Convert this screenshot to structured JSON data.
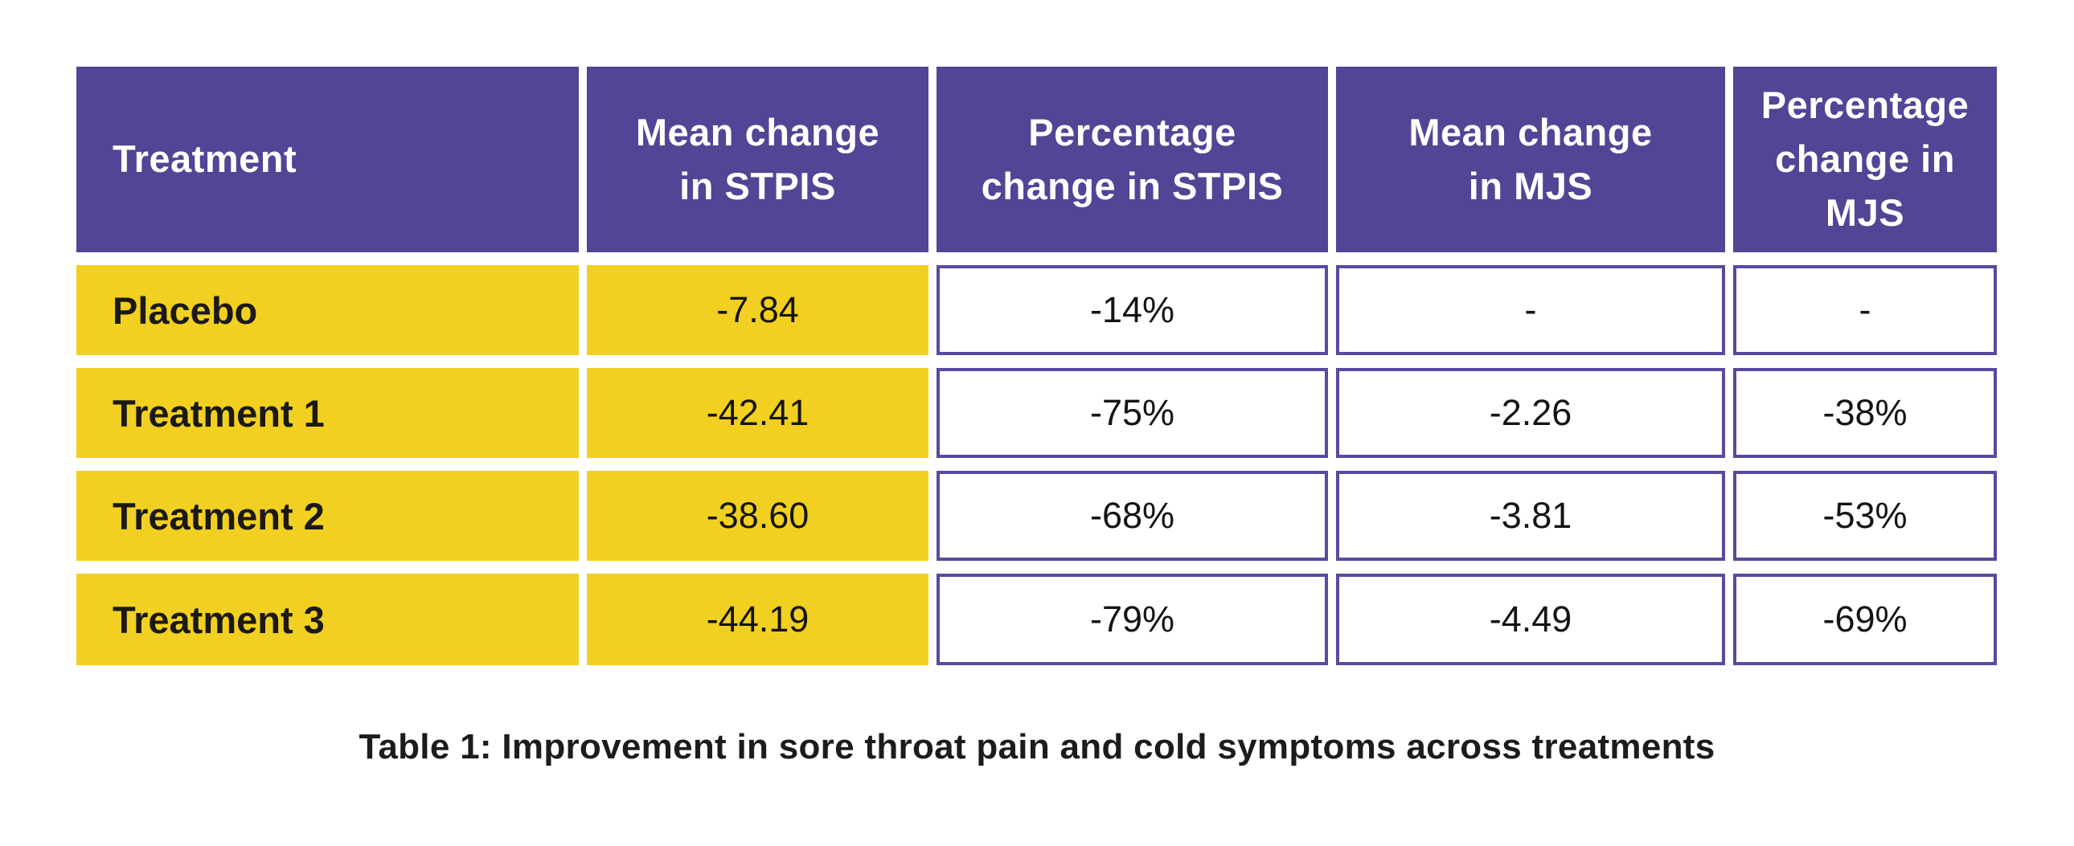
{
  "chart_data": {
    "type": "table",
    "title": "Table 1: Improvement in sore throat pain and cold symptoms across treatments",
    "columns": [
      "Treatment",
      "Mean change in STPIS",
      "Percentage change in STPIS",
      "Mean change in MJS",
      "Percentage change in MJS"
    ],
    "rows": [
      [
        "Placebo",
        "-7.84",
        "-14%",
        "-",
        "-"
      ],
      [
        "Treatment 1",
        "-42.41",
        "-75%",
        "-2.26",
        "-38%"
      ],
      [
        "Treatment 2",
        "-38.60",
        "-68%",
        "-3.81",
        "-53%"
      ],
      [
        "Treatment 3",
        "-44.19",
        "-79%",
        "-4.49",
        "-69%"
      ]
    ]
  },
  "table": {
    "header": [
      {
        "label": "Treatment"
      },
      {
        "label": "Mean change\nin STPIS"
      },
      {
        "label": "Percentage\nchange in STPIS"
      },
      {
        "label": "Mean change\nin MJS"
      },
      {
        "label": "Percentage\nchange in\nMJS"
      }
    ],
    "rows": [
      {
        "cells": [
          "Placebo",
          "-7.84",
          "-14%",
          "-",
          "-"
        ]
      },
      {
        "cells": [
          "Treatment 1",
          "-42.41",
          "-75%",
          "-2.26",
          "-38%"
        ]
      },
      {
        "cells": [
          "Treatment 2",
          "-38.60",
          "-68%",
          "-3.81",
          "-53%"
        ]
      },
      {
        "cells": [
          "Treatment 3",
          "-44.19",
          "-79%",
          "-4.49",
          "-69%"
        ]
      }
    ]
  },
  "caption": "Table 1: Improvement in sore throat pain and cold symptoms across treatments",
  "colors": {
    "header_bg": "#514596",
    "row_highlight_bg": "#F1D021",
    "value_cell_border": "#584A9D",
    "header_text": "#FFFFFF",
    "body_text": "#161412",
    "background": "#FFFFFF"
  }
}
